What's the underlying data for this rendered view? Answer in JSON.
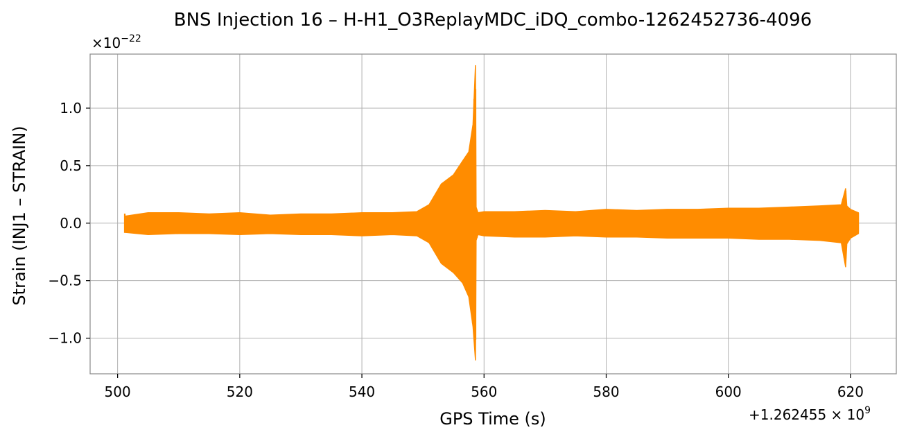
{
  "chart_data": {
    "type": "line",
    "title": "BNS Injection 16 – H-H1_O3ReplayMDC_iDQ_combo-1262452736-4096",
    "xlabel": "GPS Time (s)",
    "ylabel": "Strain (INJ1 – STRAIN)",
    "x_offset_label": "+1.262455 × 10",
    "x_offset_exponent": "9",
    "y_multiplier_label": "×10",
    "y_multiplier_exponent": "−22",
    "xlim": [
      495.5,
      627.5
    ],
    "ylim": [
      -1.31,
      1.47
    ],
    "x_ticks": [
      500,
      520,
      540,
      560,
      580,
      600,
      620
    ],
    "x_tick_labels": [
      "500",
      "520",
      "540",
      "560",
      "580",
      "600",
      "620"
    ],
    "y_ticks": [
      -1.0,
      -0.5,
      0.0,
      0.5,
      1.0
    ],
    "y_tick_labels": [
      "−1.0",
      "−0.5",
      "0.0",
      "0.5",
      "1.0"
    ],
    "grid": true,
    "series": [
      {
        "color": "#ff8c00",
        "x": [
          501.2,
          505,
          510,
          515,
          520,
          525,
          530,
          535,
          540,
          545,
          549,
          551,
          553,
          555,
          556.5,
          557.5,
          558.2,
          558.6,
          558.7,
          559,
          560,
          565,
          570,
          575,
          580,
          585,
          590,
          595,
          600,
          605,
          610,
          615,
          618.5,
          619.2,
          619.4,
          620,
          621.3
        ],
        "upper": [
          0.06,
          0.09,
          0.09,
          0.08,
          0.09,
          0.07,
          0.08,
          0.08,
          0.09,
          0.09,
          0.1,
          0.16,
          0.34,
          0.42,
          0.54,
          0.62,
          0.86,
          1.37,
          0.14,
          0.09,
          0.1,
          0.1,
          0.11,
          0.1,
          0.12,
          0.11,
          0.12,
          0.12,
          0.13,
          0.13,
          0.14,
          0.15,
          0.16,
          0.3,
          0.15,
          0.12,
          0.09
        ],
        "lower": [
          -0.08,
          -0.1,
          -0.09,
          -0.09,
          -0.1,
          -0.09,
          -0.1,
          -0.1,
          -0.11,
          -0.1,
          -0.11,
          -0.17,
          -0.35,
          -0.43,
          -0.52,
          -0.64,
          -0.9,
          -1.19,
          -0.15,
          -0.1,
          -0.11,
          -0.12,
          -0.12,
          -0.11,
          -0.12,
          -0.12,
          -0.13,
          -0.13,
          -0.13,
          -0.14,
          -0.14,
          -0.15,
          -0.17,
          -0.38,
          -0.18,
          -0.13,
          -0.09
        ]
      }
    ]
  }
}
